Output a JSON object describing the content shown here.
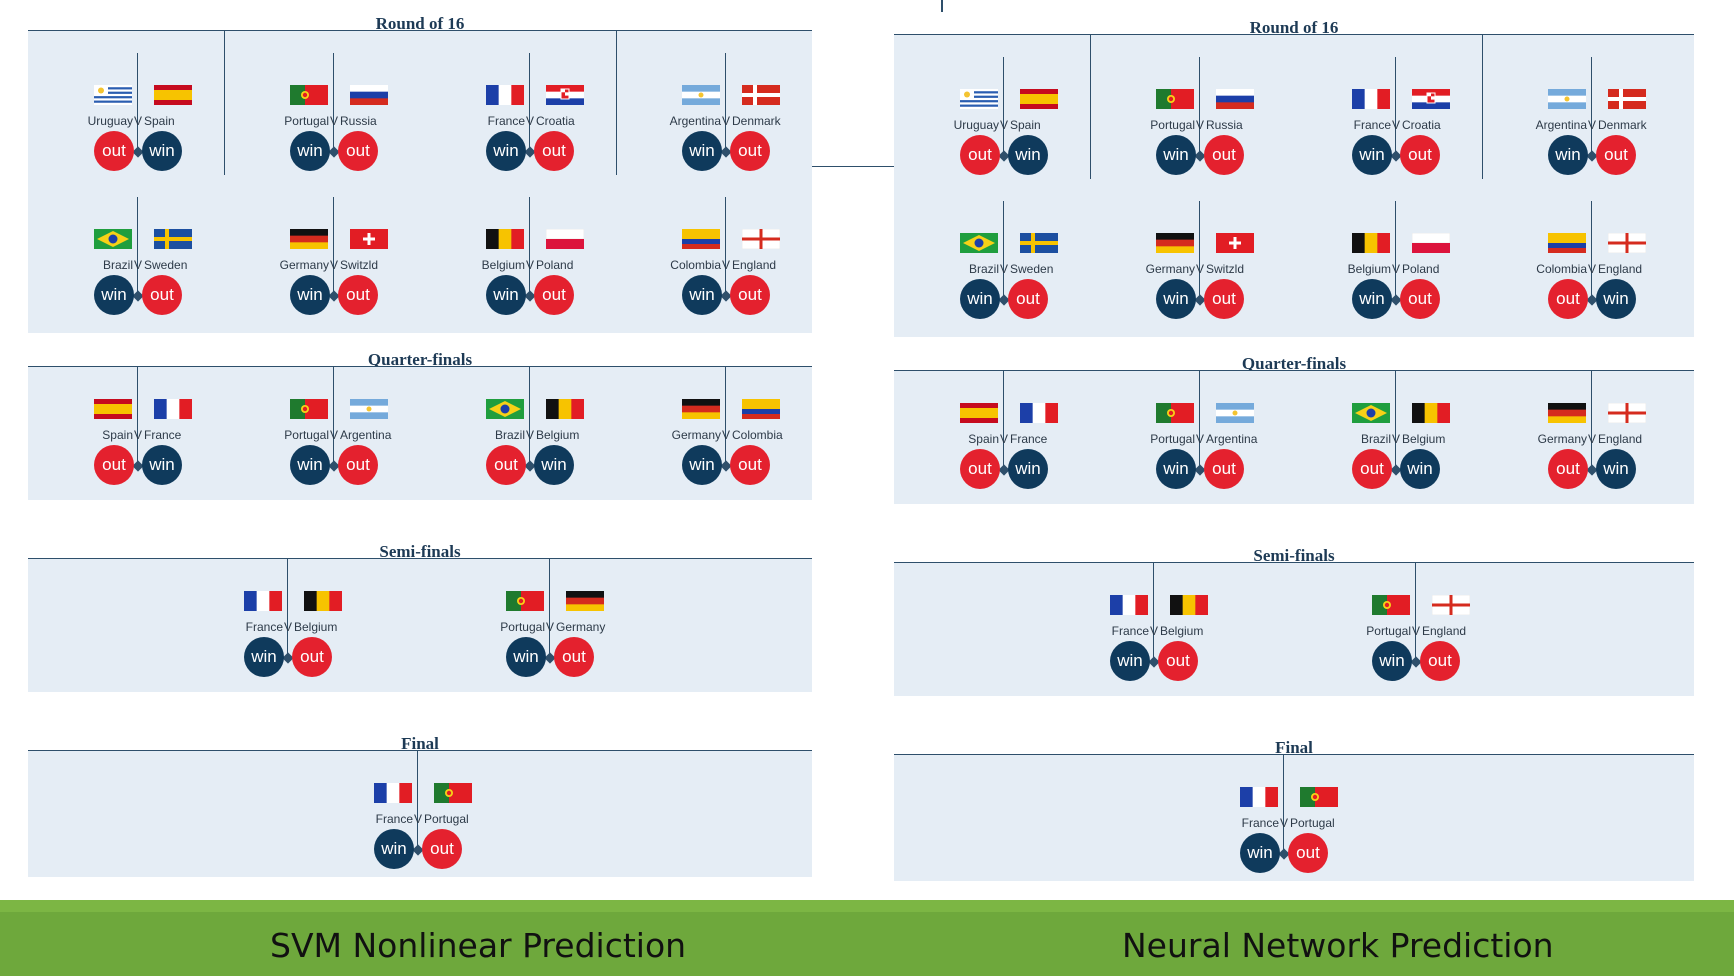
{
  "vs_label": "V",
  "colors": {
    "win": "#0f3a5c",
    "out": "#e4212e",
    "panel_bg": "#e5edf5",
    "line": "#2e4f6b",
    "footer": "#6ea83c"
  },
  "footer": {
    "left_label": "SVM Nonlinear Prediction",
    "right_label": "Neural Network Prediction"
  },
  "panels": [
    {
      "id": "svm",
      "rounds": [
        {
          "title": "Round of 16",
          "matches": [
            {
              "home": "Uruguay",
              "away": "Spain",
              "home_result": "out",
              "away_result": "win"
            },
            {
              "home": "Portugal",
              "away": "Russia",
              "home_result": "win",
              "away_result": "out"
            },
            {
              "home": "France",
              "away": "Croatia",
              "home_result": "win",
              "away_result": "out"
            },
            {
              "home": "Argentina",
              "away": "Denmark",
              "home_result": "win",
              "away_result": "out"
            },
            {
              "home": "Brazil",
              "away": "Sweden",
              "home_result": "win",
              "away_result": "out"
            },
            {
              "home": "Germany",
              "away": "Switzld",
              "home_result": "win",
              "away_result": "out"
            },
            {
              "home": "Belgium",
              "away": "Poland",
              "home_result": "win",
              "away_result": "out"
            },
            {
              "home": "Colombia",
              "away": "England",
              "home_result": "win",
              "away_result": "out"
            }
          ]
        },
        {
          "title": "Quarter-finals",
          "matches": [
            {
              "home": "Spain",
              "away": "France",
              "home_result": "out",
              "away_result": "win"
            },
            {
              "home": "Portugal",
              "away": "Argentina",
              "home_result": "win",
              "away_result": "out"
            },
            {
              "home": "Brazil",
              "away": "Belgium",
              "home_result": "out",
              "away_result": "win"
            },
            {
              "home": "Germany",
              "away": "Colombia",
              "home_result": "win",
              "away_result": "out"
            }
          ]
        },
        {
          "title": "Semi-finals",
          "matches": [
            {
              "home": "France",
              "away": "Belgium",
              "home_result": "win",
              "away_result": "out"
            },
            {
              "home": "Portugal",
              "away": "Germany",
              "home_result": "win",
              "away_result": "out"
            }
          ]
        },
        {
          "title": "Final",
          "matches": [
            {
              "home": "France",
              "away": "Portugal",
              "home_result": "win",
              "away_result": "out"
            }
          ]
        }
      ]
    },
    {
      "id": "nn",
      "rounds": [
        {
          "title": "Round of 16",
          "matches": [
            {
              "home": "Uruguay",
              "away": "Spain",
              "home_result": "out",
              "away_result": "win"
            },
            {
              "home": "Portugal",
              "away": "Russia",
              "home_result": "win",
              "away_result": "out"
            },
            {
              "home": "France",
              "away": "Croatia",
              "home_result": "win",
              "away_result": "out"
            },
            {
              "home": "Argentina",
              "away": "Denmark",
              "home_result": "win",
              "away_result": "out"
            },
            {
              "home": "Brazil",
              "away": "Sweden",
              "home_result": "win",
              "away_result": "out"
            },
            {
              "home": "Germany",
              "away": "Switzld",
              "home_result": "win",
              "away_result": "out"
            },
            {
              "home": "Belgium",
              "away": "Poland",
              "home_result": "win",
              "away_result": "out"
            },
            {
              "home": "Colombia",
              "away": "England",
              "home_result": "out",
              "away_result": "win"
            }
          ]
        },
        {
          "title": "Quarter-finals",
          "matches": [
            {
              "home": "Spain",
              "away": "France",
              "home_result": "out",
              "away_result": "win"
            },
            {
              "home": "Portugal",
              "away": "Argentina",
              "home_result": "win",
              "away_result": "out"
            },
            {
              "home": "Brazil",
              "away": "Belgium",
              "home_result": "out",
              "away_result": "win"
            },
            {
              "home": "Germany",
              "away": "England",
              "home_result": "out",
              "away_result": "win"
            }
          ]
        },
        {
          "title": "Semi-finals",
          "matches": [
            {
              "home": "France",
              "away": "Belgium",
              "home_result": "win",
              "away_result": "out"
            },
            {
              "home": "Portugal",
              "away": "England",
              "home_result": "win",
              "away_result": "out"
            }
          ]
        },
        {
          "title": "Final",
          "matches": [
            {
              "home": "France",
              "away": "Portugal",
              "home_result": "win",
              "away_result": "out"
            }
          ]
        }
      ]
    }
  ]
}
